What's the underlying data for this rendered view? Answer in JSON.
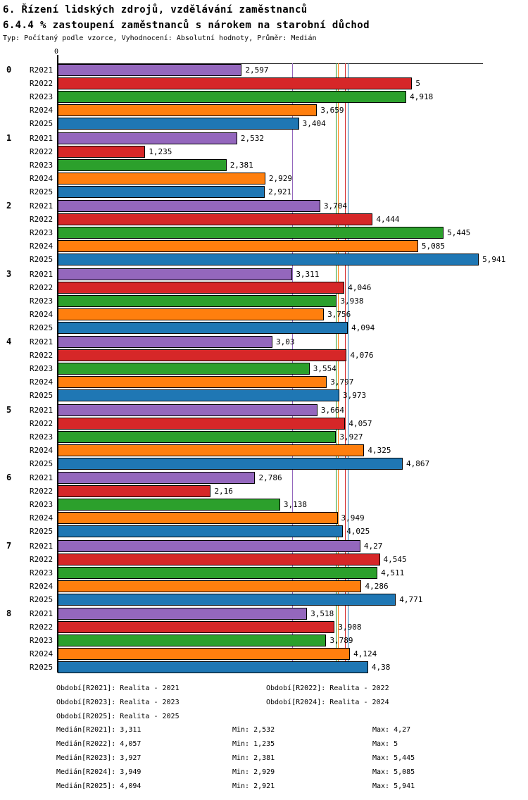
{
  "header": {
    "title": "6. Řízení lidských zdrojů, vzdělávání zaměstnanců",
    "subtitle": "6.4.4 % zastoupení zaměstnanců s nárokem na starobní důchod",
    "meta": "Typ: Počítaný podle vzorce, Vyhodnocení: Absolutní hodnoty, Průměr: Medián"
  },
  "chart_data": {
    "type": "bar",
    "orientation": "horizontal",
    "title": "6.4.4 % zastoupení zaměstnanců s nárokem na starobní důchod",
    "axis_zero_label": "0",
    "xlim": [
      0,
      6
    ],
    "grid": false,
    "decimal_separator": ",",
    "series": [
      {
        "name": "R2021",
        "color": "#9467bd"
      },
      {
        "name": "R2022",
        "color": "#d62728"
      },
      {
        "name": "R2023",
        "color": "#2ca02c"
      },
      {
        "name": "R2024",
        "color": "#ff7f0e"
      },
      {
        "name": "R2025",
        "color": "#1f77b4"
      }
    ],
    "groups": [
      {
        "label": "0",
        "values": [
          "2,597",
          "5",
          "4,918",
          "3,659",
          "3,404"
        ]
      },
      {
        "label": "1",
        "values": [
          "2,532",
          "1,235",
          "2,381",
          "2,929",
          "2,921"
        ]
      },
      {
        "label": "2",
        "values": [
          "3,704",
          "4,444",
          "5,445",
          "5,085",
          "5,941"
        ]
      },
      {
        "label": "3",
        "values": [
          "3,311",
          "4,046",
          "3,938",
          "3,756",
          "4,094"
        ]
      },
      {
        "label": "4",
        "values": [
          "3,03",
          "4,076",
          "3,554",
          "3,797",
          "3,973"
        ]
      },
      {
        "label": "5",
        "values": [
          "3,664",
          "4,057",
          "3,927",
          "4,325",
          "4,867"
        ]
      },
      {
        "label": "6",
        "values": [
          "2,786",
          "2,16",
          "3,138",
          "3,949",
          "4,025"
        ]
      },
      {
        "label": "7",
        "values": [
          "4,27",
          "4,545",
          "4,511",
          "4,286",
          "4,771"
        ]
      },
      {
        "label": "8",
        "values": [
          "3,518",
          "3,908",
          "3,789",
          "4,124",
          "4,38"
        ]
      }
    ],
    "median_lines": [
      {
        "series": "R2021",
        "value": "3,311",
        "color": "#9467bd"
      },
      {
        "series": "R2022",
        "value": "4,057",
        "color": "#d62728"
      },
      {
        "series": "R2023",
        "value": "3,927",
        "color": "#2ca02c"
      },
      {
        "series": "R2024",
        "value": "3,949",
        "color": "#ff7f0e"
      },
      {
        "series": "R2025",
        "value": "4,094",
        "color": "#1f77b4"
      }
    ]
  },
  "legend": {
    "items": [
      {
        "series": "R2021",
        "text": "Období[R2021]: Realita - 2021"
      },
      {
        "series": "R2022",
        "text": "Období[R2022]: Realita - 2022"
      },
      {
        "series": "R2023",
        "text": "Období[R2023]: Realita - 2023"
      },
      {
        "series": "R2024",
        "text": "Období[R2024]: Realita - 2024"
      },
      {
        "series": "R2025",
        "text": "Období[R2025]: Realita - 2025"
      }
    ]
  },
  "stats": {
    "rows": [
      {
        "series": "R2021",
        "median": "Medián[R2021]: 3,311",
        "min": "Min: 2,532",
        "max": "Max: 4,27"
      },
      {
        "series": "R2022",
        "median": "Medián[R2022]: 4,057",
        "min": "Min: 1,235",
        "max": "Max: 5"
      },
      {
        "series": "R2023",
        "median": "Medián[R2023]: 3,927",
        "min": "Min: 2,381",
        "max": "Max: 5,445"
      },
      {
        "series": "R2024",
        "median": "Medián[R2024]: 3,949",
        "min": "Min: 2,929",
        "max": "Max: 5,085"
      },
      {
        "series": "R2025",
        "median": "Medián[R2025]: 4,094",
        "min": "Min: 2,921",
        "max": "Max: 5,941"
      }
    ]
  }
}
